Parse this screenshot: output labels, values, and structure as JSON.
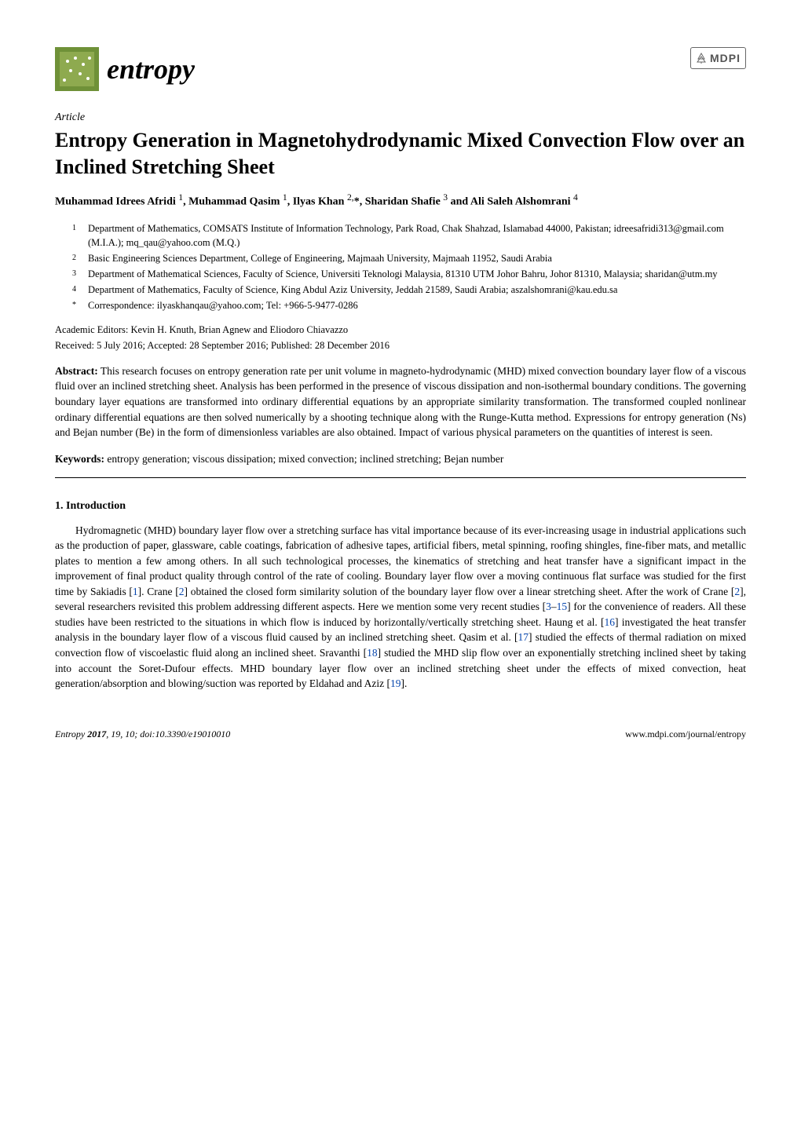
{
  "journal": {
    "name": "entropy",
    "logo_colors": {
      "a": "#9fb858",
      "b": "#5e7b2f",
      "c": "#3e5a1e",
      "d": "#c3d68a"
    }
  },
  "publisher": {
    "name": "MDPI"
  },
  "article_label": "Article",
  "title": "Entropy Generation in Magnetohydrodynamic Mixed Convection Flow over an Inclined Stretching Sheet",
  "authors_html": "Muhammad Idrees Afridi <sup>1</sup>, Muhammad Qasim <sup>1</sup>, Ilyas Khan <sup>2,</sup>*, Sharidan Shafie <sup>3</sup> and Ali Saleh Alshomrani <sup>4</sup>",
  "affiliations": [
    {
      "num": "1",
      "text": "Department of Mathematics, COMSATS Institute of Information Technology, Park Road, Chak Shahzad, Islamabad 44000, Pakistan; idreesafridi313@gmail.com (M.I.A.); mq_qau@yahoo.com (M.Q.)"
    },
    {
      "num": "2",
      "text": "Basic Engineering Sciences Department, College of Engineering, Majmaah University, Majmaah 11952, Saudi Arabia"
    },
    {
      "num": "3",
      "text": "Department of Mathematical Sciences, Faculty of Science, Universiti Teknologi Malaysia, 81310 UTM Johor Bahru, Johor 81310, Malaysia; sharidan@utm.my"
    },
    {
      "num": "4",
      "text": "Department of Mathematics, Faculty of Science, King Abdul Aziz University, Jeddah 21589, Saudi Arabia; aszalshomrani@kau.edu.sa"
    },
    {
      "num": "*",
      "text": "Correspondence: ilyaskhanqau@yahoo.com; Tel: +966-5-9477-0286"
    }
  ],
  "editors": "Academic Editors: Kevin H. Knuth, Brian Agnew and Eliodoro Chiavazzo",
  "dates": "Received: 5 July 2016; Accepted: 28 September 2016; Published: 28 December 2016",
  "abstract_label": "Abstract:",
  "abstract_text": " This research focuses on entropy generation rate per unit volume in magneto-hydrodynamic (MHD) mixed convection boundary layer flow of a viscous fluid over an inclined stretching sheet. Analysis has been performed in the presence of viscous dissipation and non-isothermal boundary conditions. The governing boundary layer equations are transformed into ordinary differential equations by an appropriate similarity transformation. The transformed coupled nonlinear ordinary differential equations are then solved numerically by a shooting technique along with the Runge-Kutta method. Expressions for entropy generation (Ns) and Bejan number (Be) in the form of dimensionless variables are also obtained. Impact of various physical parameters on the quantities of interest is seen.",
  "keywords_label": "Keywords:",
  "keywords_text": " entropy generation; viscous dissipation; mixed convection; inclined stretching; Bejan number",
  "section1": {
    "heading": "1.  Introduction",
    "para1_pre": "Hydromagnetic (MHD) boundary layer flow over a stretching surface has vital importance because of its ever-increasing usage in industrial applications such as the production of paper, glassware, cable coatings, fabrication of adhesive tapes, artificial fibers, metal spinning, roofing shingles, fine-fiber mats, and metallic plates to mention a few among others. In all such technological processes, the kinematics of stretching and heat transfer have a significant impact in the improvement of final product quality through control of the rate of cooling. Boundary layer flow over a moving continuous flat surface was studied for the first time by Sakiadis [",
    "c1": "1",
    "t1": "]. Crane [",
    "c2": "2",
    "t2": "] obtained the closed form similarity solution of the boundary layer flow over a linear stretching sheet. After the work of Crane [",
    "c3": "2",
    "t3": "], several researchers revisited this problem addressing different aspects. Here we mention some very recent studies [",
    "c4": "3",
    "dash": "–",
    "c5": "15",
    "t4": "] for the convenience of readers. All these studies have been restricted to the situations in which flow is induced by horizontally/vertically stretching sheet. Haung et al. [",
    "c6": "16",
    "t5": "] investigated the heat transfer analysis in the boundary layer flow of a viscous fluid caused by an inclined stretching sheet. Qasim et al. [",
    "c7": "17",
    "t6": "] studied the effects of thermal radiation on mixed convection flow of viscoelastic fluid along an inclined sheet. Sravanthi [",
    "c8": "18",
    "t7": "] studied the MHD slip flow over an exponentially stretching inclined sheet by taking into account the Soret-Dufour effects. MHD boundary layer flow over an inclined stretching sheet under the effects of mixed convection, heat generation/absorption and blowing/suction was reported by Eldahad and Aziz [",
    "c9": "19",
    "t8": "]."
  },
  "footer": {
    "left_journal": "Entropy ",
    "left_year": "2017",
    "left_rest": ", 19, 10; doi:10.3390/e19010010",
    "right": "www.mdpi.com/journal/entropy"
  }
}
